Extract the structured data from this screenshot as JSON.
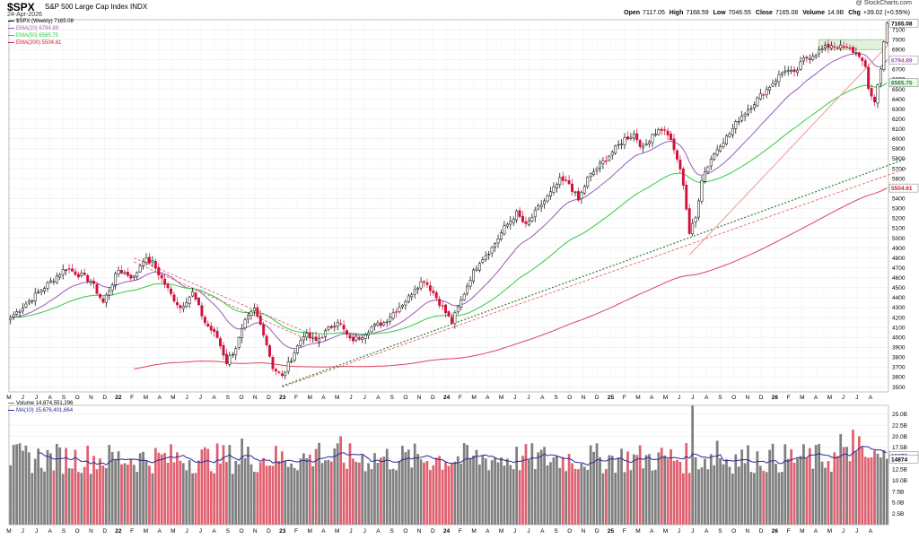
{
  "header": {
    "ticker": "$SPX",
    "name": "S&P 500 Large Cap Index",
    "exchange": "INDX",
    "date": "24-Apr-2026",
    "credit": "@ StockCharts.com",
    "open_label": "Open",
    "open": "7117.05",
    "high_label": "High",
    "high": "7168.59",
    "low_label": "Low",
    "low": "7046.55",
    "close_label": "Close",
    "close": "7165.08",
    "volume_label": "Volume",
    "volume": "14.9B",
    "chg_label": "Chg",
    "chg": "+39.02 (+0.55%)"
  },
  "legend": {
    "symbol": "$SPX (Weekly) 7165.08",
    "ema20": "EMA(20) 6794.89",
    "ema50": "EMA(50) 6565.75",
    "ema200": "EMA(200) 5504.61",
    "volume": "Volume 14,874,551,296",
    "ma10": "MA(10) 15,676,401,664"
  },
  "colors": {
    "up": "#ffffff",
    "down": "#d0103a",
    "ema20": "#9b59b6",
    "ema50": "#2ecc40",
    "ema200": "#e0405a",
    "vol_up": "#7f7f7f",
    "vol_down": "#e06070",
    "ma10": "#2a2a9a",
    "trend_green": "#2e7d32",
    "trend_red": "#e05060",
    "trend_pink": "#f0a8a8"
  },
  "chart_data": [
    {
      "type": "candlestick",
      "title": "$SPX (Weekly) 7165.08",
      "ylim": [
        3450,
        7200
      ],
      "y_ticks": [
        3500,
        3600,
        3700,
        3800,
        3900,
        4000,
        4100,
        4200,
        4300,
        4400,
        4500,
        4600,
        4700,
        4800,
        4900,
        5000,
        5100,
        5200,
        5300,
        5400,
        5500,
        5600,
        5700,
        5800,
        5900,
        6000,
        6100,
        6200,
        6300,
        6400,
        6500,
        6600,
        6700,
        6800,
        6900,
        7000,
        7100
      ],
      "price_tags": {
        "last": "7165.08",
        "ema20": "6794.89",
        "ema50": "6565.75",
        "ema200": "5504.61"
      },
      "x_months": [
        "M",
        "J",
        "J",
        "A",
        "S",
        "O",
        "N",
        "D",
        "22",
        "F",
        "M",
        "A",
        "M",
        "J",
        "J",
        "A",
        "S",
        "O",
        "N",
        "D",
        "23",
        "F",
        "M",
        "A",
        "M",
        "J",
        "J",
        "A",
        "S",
        "O",
        "N",
        "D",
        "24",
        "F",
        "M",
        "A",
        "M",
        "J",
        "J",
        "A",
        "S",
        "O",
        "N",
        "D",
        "25",
        "F",
        "M",
        "A",
        "M",
        "J",
        "J",
        "A",
        "S",
        "O",
        "N",
        "D",
        "26",
        "F",
        "M",
        "A",
        "M",
        "J",
        "J",
        "A"
      ],
      "anchors": [
        [
          0,
          4200
        ],
        [
          9,
          4450
        ],
        [
          18,
          4700
        ],
        [
          26,
          4570
        ],
        [
          30,
          4350
        ],
        [
          35,
          4680
        ],
        [
          40,
          4600
        ],
        [
          43,
          4790
        ],
        [
          46,
          4750
        ],
        [
          52,
          4430
        ],
        [
          55,
          4300
        ],
        [
          59,
          4450
        ],
        [
          63,
          4150
        ],
        [
          67,
          4000
        ],
        [
          70,
          3750
        ],
        [
          73,
          3900
        ],
        [
          76,
          4150
        ],
        [
          79,
          4280
        ],
        [
          82,
          4050
        ],
        [
          85,
          3700
        ],
        [
          88,
          3600
        ],
        [
          92,
          3850
        ],
        [
          95,
          4030
        ],
        [
          99,
          3960
        ],
        [
          102,
          4050
        ],
        [
          106,
          4170
        ],
        [
          110,
          3970
        ],
        [
          113,
          4000
        ],
        [
          117,
          4100
        ],
        [
          121,
          4150
        ],
        [
          125,
          4280
        ],
        [
          129,
          4400
        ],
        [
          131,
          4500
        ],
        [
          134,
          4580
        ],
        [
          137,
          4450
        ],
        [
          140,
          4300
        ],
        [
          143,
          4150
        ],
        [
          146,
          4370
        ],
        [
          149,
          4600
        ],
        [
          152,
          4770
        ],
        [
          156,
          4900
        ],
        [
          160,
          5100
        ],
        [
          164,
          5250
        ],
        [
          167,
          5120
        ],
        [
          171,
          5300
        ],
        [
          175,
          5450
        ],
        [
          178,
          5580
        ],
        [
          181,
          5550
        ],
        [
          184,
          5380
        ],
        [
          187,
          5600
        ],
        [
          190,
          5700
        ],
        [
          193,
          5800
        ],
        [
          196,
          5900
        ],
        [
          199,
          6000
        ],
        [
          202,
          6050
        ],
        [
          205,
          5900
        ],
        [
          208,
          6050
        ],
        [
          211,
          6100
        ],
        [
          213,
          6050
        ],
        [
          216,
          5800
        ],
        [
          218,
          5550
        ],
        [
          220,
          5050
        ],
        [
          222,
          5200
        ],
        [
          224,
          5600
        ],
        [
          227,
          5800
        ],
        [
          230,
          5950
        ],
        [
          233,
          6050
        ],
        [
          236,
          6200
        ],
        [
          239,
          6300
        ],
        [
          242,
          6400
        ],
        [
          245,
          6500
        ],
        [
          248,
          6600
        ],
        [
          251,
          6700
        ],
        [
          254,
          6650
        ],
        [
          257,
          6800
        ],
        [
          260,
          6850
        ],
        [
          263,
          6900
        ],
        [
          266,
          6950
        ],
        [
          269,
          6920
        ],
        [
          272,
          6900
        ],
        [
          275,
          6850
        ],
        [
          277,
          6700
        ],
        [
          278,
          6500
        ],
        [
          280,
          6380
        ],
        [
          282,
          6700
        ],
        [
          283,
          7000
        ],
        [
          284,
          7165.08
        ]
      ],
      "series": [
        {
          "name": "EMA(20)",
          "last": 6794.89
        },
        {
          "name": "EMA(50)",
          "last": 6565.75
        },
        {
          "name": "EMA(200)",
          "last": 5504.61
        }
      ]
    },
    {
      "type": "bar",
      "title": "Volume 14,874,551,296",
      "ylim": [
        0,
        27
      ],
      "y_ticks": [
        "2.5B",
        "5.0B",
        "7.5B",
        "10.0B",
        "12.5B",
        "15.0B",
        "17.5B",
        "20.0B",
        "22.5B",
        "25.0B"
      ],
      "value_tags": {
        "ma10": "15676",
        "volume": "14874"
      },
      "units": "B",
      "base": 15.5,
      "spikes": [
        [
          75,
          19.5
        ],
        [
          100,
          18.5
        ],
        [
          107,
          20
        ],
        [
          221,
          27
        ],
        [
          229,
          19
        ],
        [
          273,
          21.5
        ],
        [
          269,
          20.5
        ],
        [
          275,
          20
        ],
        [
          284,
          14.9
        ]
      ],
      "series": [
        {
          "name": "MA(10)",
          "last": 15.68
        }
      ]
    }
  ]
}
